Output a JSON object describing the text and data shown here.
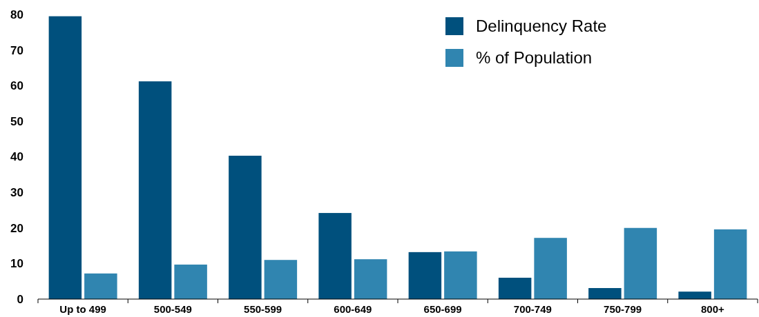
{
  "chart_data": {
    "type": "bar",
    "categories": [
      "Up to 499",
      "500-549",
      "550-599",
      "600-649",
      "650-699",
      "700-749",
      "750-799",
      "800+"
    ],
    "series": [
      {
        "name": "Delinquency Rate",
        "color": "#00507d",
        "values": [
          79.5,
          61.2,
          40.3,
          24.2,
          13.2,
          6.0,
          3.1,
          2.1
        ]
      },
      {
        "name": "% of Population",
        "color": "#3085b0",
        "values": [
          7.2,
          9.7,
          11.0,
          11.2,
          13.4,
          17.2,
          20.0,
          19.6
        ]
      }
    ],
    "ylim": [
      0,
      80
    ],
    "yticks": [
      0,
      10,
      20,
      30,
      40,
      50,
      60,
      70,
      80
    ],
    "grid": false,
    "legend": "top right"
  }
}
